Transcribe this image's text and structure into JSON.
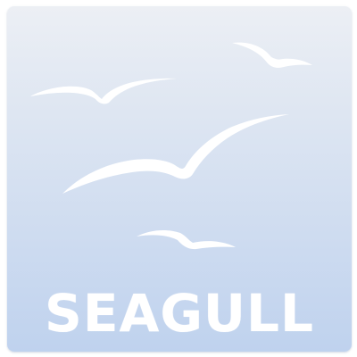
{
  "app_icon": {
    "wordmark": "SEAGULL",
    "icons": [
      "seagull-large-icon",
      "seagull-small-left-icon",
      "seagull-small-top-right-icon",
      "seagull-small-bottom-icon"
    ],
    "colors": {
      "gradient_top": "#eceff4",
      "gradient_bottom": "#bfd2ee",
      "bird": "#ffffff",
      "text": "#ffffff"
    }
  }
}
